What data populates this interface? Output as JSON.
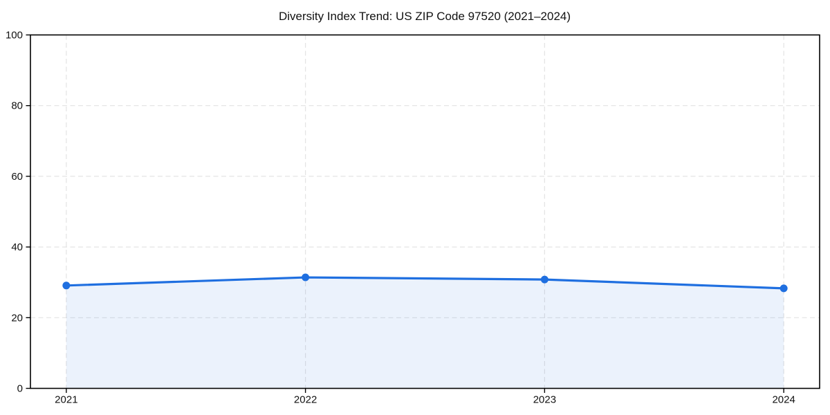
{
  "chart_data": {
    "type": "area",
    "title": "Diversity Index Trend: US ZIP Code 97520 (2021–2024)",
    "x": [
      2021,
      2022,
      2023,
      2024
    ],
    "series": [
      {
        "name": "Diversity Index",
        "values": [
          29.1,
          31.4,
          30.8,
          28.3
        ]
      }
    ],
    "xticklabels": [
      "2021",
      "2022",
      "2023",
      "2024"
    ],
    "yticks": [
      0,
      20,
      40,
      60,
      80,
      100
    ],
    "yticklabels": [
      "0",
      "20",
      "40",
      "60",
      "80",
      "100"
    ],
    "xlabel": "",
    "ylabel": "",
    "ylim": [
      0,
      100
    ],
    "x_margin": 0.15,
    "grid": "dashed",
    "legend_position": "none",
    "marker": "circle",
    "colors": {
      "line": "#1f6fe0",
      "fill": "rgba(31,111,224,0.09)",
      "grid": "#e3e3e3",
      "spine": "#000000",
      "tick_label": "#111111",
      "title": "#111111",
      "background": "#ffffff"
    }
  }
}
